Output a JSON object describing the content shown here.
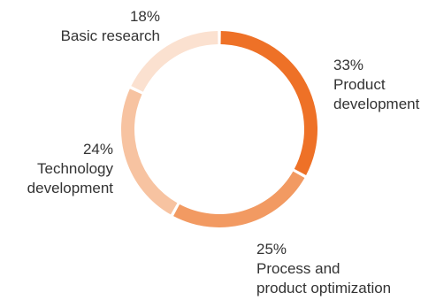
{
  "chart_data": {
    "type": "pie",
    "variant": "donut",
    "slices": [
      {
        "percent_label": "33%",
        "label_lines": [
          "Product",
          "development"
        ],
        "value": 33,
        "color": "#EE7127"
      },
      {
        "percent_label": "25%",
        "label_lines": [
          "Process and",
          "product optimization"
        ],
        "value": 25,
        "color": "#F29A62"
      },
      {
        "percent_label": "24%",
        "label_lines": [
          "Technology",
          "development"
        ],
        "value": 24,
        "color": "#F7C3A1"
      },
      {
        "percent_label": "18%",
        "label_lines": [
          "Basic research"
        ],
        "value": 18,
        "color": "#FBE1D0"
      }
    ],
    "start_angle": "top",
    "direction": "clockwise",
    "legend": "none"
  }
}
